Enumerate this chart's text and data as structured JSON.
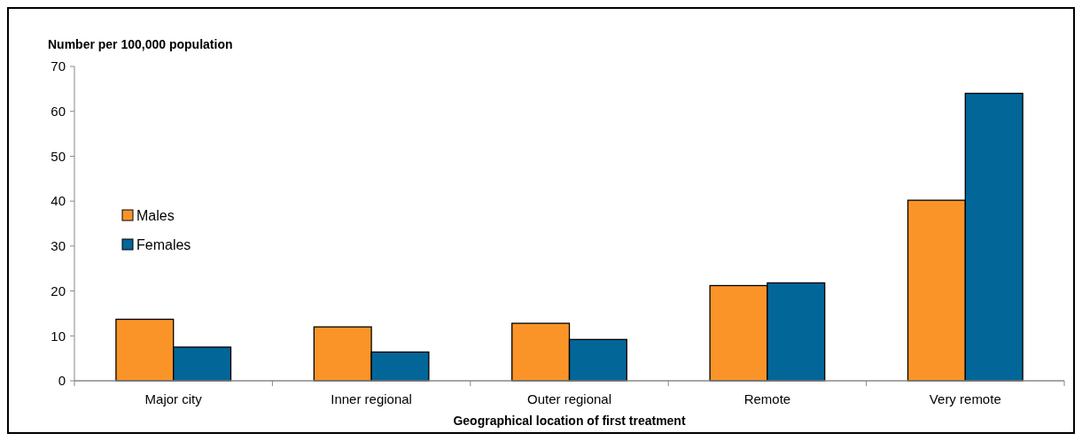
{
  "chart_data": {
    "type": "bar",
    "ylabel": "Number per 100,000 population",
    "xlabel": "Geographical location of first treatment",
    "categories": [
      "Major city",
      "Inner regional",
      "Outer regional",
      "Remote",
      "Very remote"
    ],
    "series": [
      {
        "name": "Males",
        "color": "#fb9428",
        "values": [
          13.7,
          12.0,
          12.8,
          21.2,
          40.2
        ]
      },
      {
        "name": "Females",
        "color": "#036699",
        "values": [
          7.5,
          6.4,
          9.2,
          21.8,
          64.0
        ]
      }
    ],
    "ylim": [
      0,
      70
    ],
    "yticks": [
      0,
      10,
      20,
      30,
      40,
      50,
      60,
      70
    ],
    "legend": "left",
    "grid": false
  }
}
